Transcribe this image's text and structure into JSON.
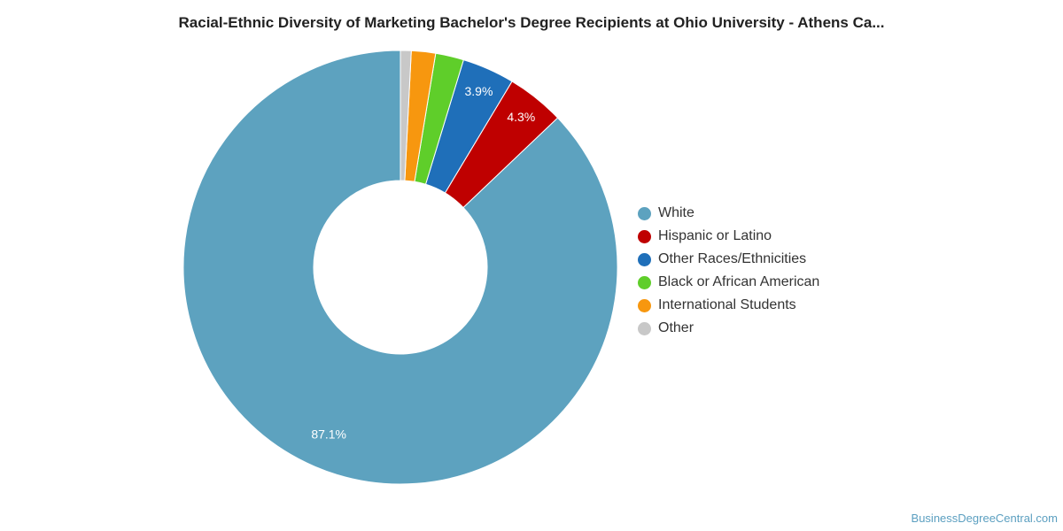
{
  "chart_data": {
    "type": "pie",
    "title": "Racial-Ethnic Diversity of Marketing Bachelor's Degree Recipients at Ohio University - Athens Ca...",
    "legend_position": "right",
    "slices": [
      {
        "label": "White",
        "value": 87.1,
        "color": "#5da2bf",
        "data_label": "87.1%"
      },
      {
        "label": "Hispanic or Latino",
        "value": 4.3,
        "color": "#bf0000",
        "data_label": "4.3%"
      },
      {
        "label": "Other Races/Ethnicities",
        "value": 3.9,
        "color": "#1f6fb9",
        "data_label": "3.9%"
      },
      {
        "label": "Black or African American",
        "value": 2.1,
        "color": "#5fce2a",
        "data_label": ""
      },
      {
        "label": "International Students",
        "value": 1.8,
        "color": "#f7970f",
        "data_label": ""
      },
      {
        "label": "Other",
        "value": 0.8,
        "color": "#c8c8c8",
        "data_label": ""
      }
    ]
  },
  "watermark": "BusinessDegreeCentral.com"
}
